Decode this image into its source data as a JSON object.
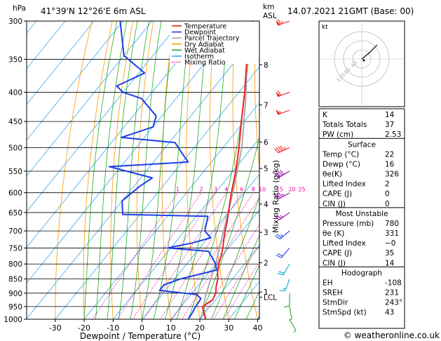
{
  "chart_data": {
    "type": "skew-t",
    "location": "41°39'N  12°26'E  6m  ASL",
    "datetime": "14.07.2021  21GMT  (Base: 00)",
    "y_left_unit": "hPa",
    "y_right_unit_top": "km",
    "y_right_unit_bottom": "ASL",
    "xlabel": "Dewpoint / Temperature (°C)",
    "ylabel_right": "Mixing Ratio (g/kg)",
    "credit": "© weatheronline.co.uk",
    "pressure_ticks": [
      300,
      350,
      400,
      450,
      500,
      550,
      600,
      650,
      700,
      750,
      800,
      850,
      900,
      950,
      1000
    ],
    "temp_ticks": [
      -30,
      -20,
      -10,
      0,
      10,
      20,
      30,
      40
    ],
    "km_ticks": [
      {
        "label": "8",
        "p": 358
      },
      {
        "label": "7",
        "p": 421
      },
      {
        "label": "6",
        "p": 489
      },
      {
        "label": "5",
        "p": 544
      },
      {
        "label": "4",
        "p": 628
      },
      {
        "label": "3",
        "p": 704
      },
      {
        "label": "2",
        "p": 796
      },
      {
        "label": "1",
        "p": 896
      },
      {
        "label": "LCL",
        "p": 915
      }
    ],
    "mixing_ratio_labels": [
      "1",
      "2",
      "3",
      "4",
      "6",
      "8",
      "10",
      "15",
      "20",
      "25"
    ],
    "legend": [
      {
        "name": "Temperature",
        "color": "#ee2222"
      },
      {
        "name": "Dewpoint",
        "color": "#1e3ee6"
      },
      {
        "name": "Parcel Trajectory",
        "color": "#aaaaaa"
      },
      {
        "name": "Dry Adiabat",
        "color": "#ff9900"
      },
      {
        "name": "Wet Adiabat",
        "color": "#22aa22"
      },
      {
        "name": "Isotherm",
        "color": "#33aaee"
      },
      {
        "name": "Mixing Ratio",
        "color": "#ee00aa"
      }
    ],
    "temperature_profile": [
      {
        "p": 1000,
        "t": 22
      },
      {
        "p": 975,
        "t": 19.6
      },
      {
        "p": 950,
        "t": 17.4
      },
      {
        "p": 925,
        "t": 19
      },
      {
        "p": 900,
        "t": 18.2
      },
      {
        "p": 875,
        "t": 16.4
      },
      {
        "p": 850,
        "t": 15
      },
      {
        "p": 825,
        "t": 12.8
      },
      {
        "p": 800,
        "t": 11
      },
      {
        "p": 780,
        "t": 10
      },
      {
        "p": 750,
        "t": 8
      },
      {
        "p": 725,
        "t": 6
      },
      {
        "p": 700,
        "t": 4
      },
      {
        "p": 675,
        "t": 2.2
      },
      {
        "p": 650,
        "t": 0
      },
      {
        "p": 600,
        "t": -4.5
      },
      {
        "p": 550,
        "t": -9
      },
      {
        "p": 500,
        "t": -14.5
      },
      {
        "p": 450,
        "t": -21
      },
      {
        "p": 400,
        "t": -28
      },
      {
        "p": 350,
        "t": -36.5
      },
      {
        "p": 300,
        "t": -45
      }
    ],
    "dewpoint_profile": [
      {
        "p": 1000,
        "t": 16
      },
      {
        "p": 975,
        "t": 15.6
      },
      {
        "p": 950,
        "t": 15
      },
      {
        "p": 920,
        "t": 14.6
      },
      {
        "p": 905,
        "t": 12
      },
      {
        "p": 890,
        "t": -2
      },
      {
        "p": 870,
        "t": -2
      },
      {
        "p": 850,
        "t": 2
      },
      {
        "p": 820,
        "t": 12
      },
      {
        "p": 800,
        "t": 10
      },
      {
        "p": 760,
        "t": 4
      },
      {
        "p": 750,
        "t": -11
      },
      {
        "p": 735,
        "t": -4
      },
      {
        "p": 720,
        "t": 1
      },
      {
        "p": 700,
        "t": -3
      },
      {
        "p": 660,
        "t": -6
      },
      {
        "p": 655,
        "t": -36
      },
      {
        "p": 620,
        "t": -40
      },
      {
        "p": 585,
        "t": -38
      },
      {
        "p": 565,
        "t": -36
      },
      {
        "p": 540,
        "t": -54
      },
      {
        "p": 530,
        "t": -28
      },
      {
        "p": 510,
        "t": -33
      },
      {
        "p": 490,
        "t": -38
      },
      {
        "p": 480,
        "t": -58
      },
      {
        "p": 460,
        "t": -50
      },
      {
        "p": 440,
        "t": -52
      },
      {
        "p": 410,
        "t": -62
      },
      {
        "p": 400,
        "t": -70
      },
      {
        "p": 390,
        "t": -74
      },
      {
        "p": 370,
        "t": -68
      },
      {
        "p": 345,
        "t": -80
      },
      {
        "p": 300,
        "t": -91
      }
    ],
    "parcel_profile": [
      {
        "p": 1000,
        "t": 22
      },
      {
        "p": 950,
        "t": 17.8
      },
      {
        "p": 915,
        "t": 15.7
      },
      {
        "p": 850,
        "t": 12.5
      },
      {
        "p": 800,
        "t": 10
      },
      {
        "p": 700,
        "t": 3.5
      },
      {
        "p": 600,
        "t": -4
      },
      {
        "p": 500,
        "t": -13.5
      },
      {
        "p": 400,
        "t": -27.5
      },
      {
        "p": 300,
        "t": -47
      }
    ],
    "indices": {
      "K": "14",
      "Totals Totals": "37",
      "PW (cm)": "2.53"
    },
    "surface": {
      "title": "Surface",
      "rows": [
        [
          "Temp (°C)",
          "22"
        ],
        [
          "Dewp (°C)",
          "16"
        ],
        [
          "θe(K)",
          "326"
        ],
        [
          "Lifted Index",
          "2"
        ],
        [
          "CAPE (J)",
          "0"
        ],
        [
          "CIN (J)",
          "0"
        ]
      ]
    },
    "most_unstable": {
      "title": "Most Unstable",
      "rows": [
        [
          "Pressure (mb)",
          "780"
        ],
        [
          "θe (K)",
          "331"
        ],
        [
          "Lifted Index",
          "−0"
        ],
        [
          "CAPE (J)",
          "35"
        ],
        [
          "CIN (J)",
          "14"
        ]
      ]
    },
    "hodograph": {
      "title": "Hodograph",
      "rows": [
        [
          "EH",
          "-108"
        ],
        [
          "SREH",
          "231"
        ],
        [
          "StmDir",
          "243°"
        ],
        [
          "StmSpd (kt)",
          "43"
        ]
      ],
      "box_label": "kt",
      "ring_labels": [
        "120",
        "80",
        "40"
      ],
      "points": [
        [
          0,
          0
        ],
        [
          3,
          2
        ],
        [
          6,
          5
        ],
        [
          10,
          8
        ],
        [
          14,
          12
        ],
        [
          18,
          16
        ],
        [
          22,
          20
        ]
      ]
    },
    "wind_barbs": [
      {
        "p": 300,
        "dir": 250,
        "spd": 65
      },
      {
        "p": 400,
        "dir": 250,
        "spd": 60
      },
      {
        "p": 430,
        "dir": 250,
        "spd": 55
      },
      {
        "p": 500,
        "dir": 245,
        "spd": 45
      },
      {
        "p": 550,
        "dir": 240,
        "spd": 40
      },
      {
        "p": 600,
        "dir": 240,
        "spd": 35
      },
      {
        "p": 650,
        "dir": 235,
        "spd": 25
      },
      {
        "p": 700,
        "dir": 230,
        "spd": 25
      },
      {
        "p": 750,
        "dir": 220,
        "spd": 20
      },
      {
        "p": 800,
        "dir": 210,
        "spd": 20
      },
      {
        "p": 850,
        "dir": 200,
        "spd": 15
      },
      {
        "p": 900,
        "dir": 180,
        "spd": 10
      },
      {
        "p": 950,
        "dir": 170,
        "spd": 5
      },
      {
        "p": 1000,
        "dir": 150,
        "spd": 5
      }
    ]
  }
}
